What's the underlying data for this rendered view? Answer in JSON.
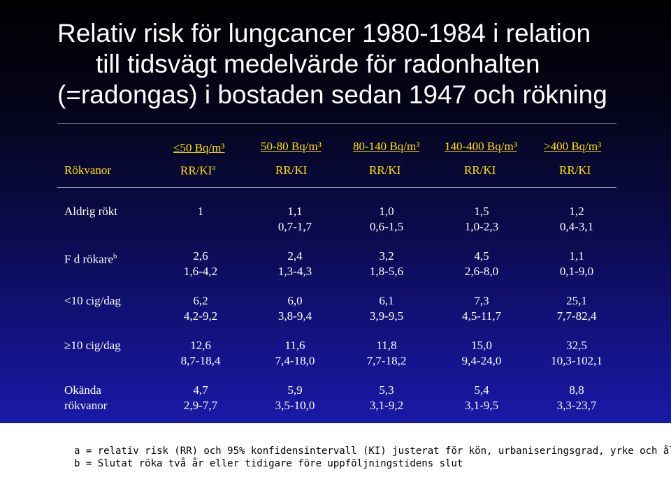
{
  "title": {
    "line1": "Relativ risk för lungcancer 1980-1984 i relation",
    "line2": "till tidsvägt medelvärde för radonhalten",
    "line3": "(=radongas) i bostaden sedan 1947 och rökning"
  },
  "table": {
    "columns": [
      {
        "range": "≤50 Bq/m³",
        "sub": "RR/KI",
        "sub_sup": "a"
      },
      {
        "range": "50-80 Bq/m³",
        "sub": "RR/KI",
        "sub_sup": ""
      },
      {
        "range": "80-140 Bq/m³",
        "sub": "RR/KI",
        "sub_sup": ""
      },
      {
        "range": "140-400 Bq/m³",
        "sub": "RR/KI",
        "sub_sup": ""
      },
      {
        "range": ">400 Bq/m³",
        "sub": "RR/KI",
        "sub_sup": ""
      }
    ],
    "row_header": "Rökvanor",
    "rows": [
      {
        "label": "Aldrig rökt",
        "label2": "",
        "sup": "",
        "cells": [
          [
            "1",
            ""
          ],
          [
            "1,1",
            "0,7-1,7"
          ],
          [
            "1,0",
            "0,6-1,5"
          ],
          [
            "1,5",
            "1,0-2,3"
          ],
          [
            "1,2",
            "0,4-3,1"
          ]
        ]
      },
      {
        "label": "F d rökare",
        "label2": "",
        "sup": "b",
        "cells": [
          [
            "2,6",
            "1,6-4,2"
          ],
          [
            "2,4",
            "1,3-4,3"
          ],
          [
            "3,2",
            "1,8-5,6"
          ],
          [
            "4,5",
            "2,6-8,0"
          ],
          [
            "1,1",
            "0,1-9,0"
          ]
        ]
      },
      {
        "label": "<10 cig/dag",
        "label2": "",
        "sup": "",
        "cells": [
          [
            "6,2",
            "4,2-9,2"
          ],
          [
            "6,0",
            "3,8-9,4"
          ],
          [
            "6,1",
            "3,9-9,5"
          ],
          [
            "7,3",
            "4,5-11,7"
          ],
          [
            "25,1",
            "7,7-82,4"
          ]
        ]
      },
      {
        "label": "≥10 cig/dag",
        "label2": "",
        "sup": "",
        "cells": [
          [
            "12,6",
            "8,7-18,4"
          ],
          [
            "11,6",
            "7,4-18,0"
          ],
          [
            "11,8",
            "7,7-18,2"
          ],
          [
            "15,0",
            "9,4-24,0"
          ],
          [
            "32,5",
            "10,3-102,1"
          ]
        ]
      },
      {
        "label": "Okända",
        "label2": "rökvanor",
        "sup": "",
        "cells": [
          [
            "4,7",
            "2,9-7,7"
          ],
          [
            "5,9",
            "3,5-10,0"
          ],
          [
            "5,3",
            "3,1-9,2"
          ],
          [
            "5,4",
            "3,1-9,5"
          ],
          [
            "8,8",
            "3,3-23,7"
          ]
        ]
      }
    ]
  },
  "footnotes": {
    "a": "a = relativ risk (RR) och 95% konfidensintervall (KI) justerat för kön, urbaniseringsgrad, yrke och ålder",
    "b": "b = Slutat röka två år eller tidigare före uppföljningstidens slut"
  },
  "colors": {
    "header_yellow": "#ffe000",
    "text_white": "#ffffff",
    "footer_bg": "#ffffff"
  }
}
